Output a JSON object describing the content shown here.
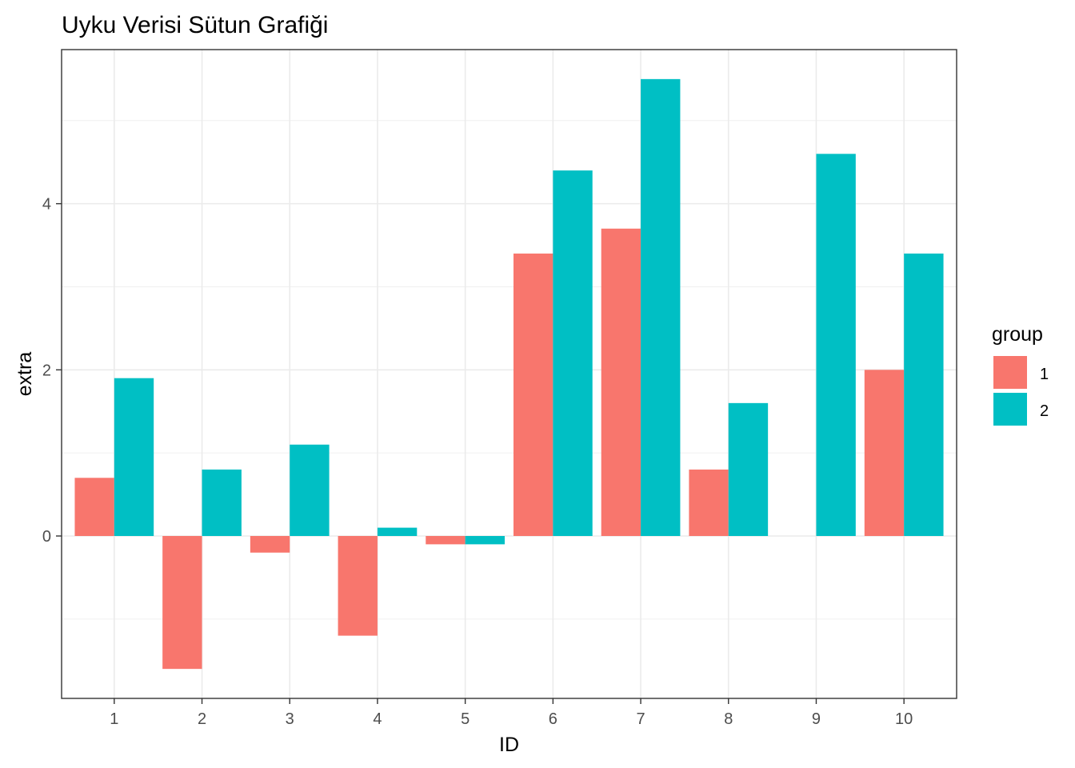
{
  "chart_data": {
    "type": "bar",
    "title": "Uyku Verisi Sütun Grafiği",
    "xlabel": "ID",
    "ylabel": "extra",
    "categories": [
      "1",
      "2",
      "3",
      "4",
      "5",
      "6",
      "7",
      "8",
      "9",
      "10"
    ],
    "series": [
      {
        "name": "1",
        "color": "#F8766D",
        "values": [
          0.7,
          -1.6,
          -0.2,
          -1.2,
          -0.1,
          3.4,
          3.7,
          0.8,
          0.0,
          2.0
        ]
      },
      {
        "name": "2",
        "color": "#00BFC4",
        "values": [
          1.9,
          0.8,
          1.1,
          0.1,
          -0.1,
          4.4,
          5.5,
          1.6,
          4.6,
          3.4
        ]
      }
    ],
    "ylim": [
      -1.955,
      5.855
    ],
    "yticks": [
      0,
      2,
      4
    ],
    "yticks_labels": [
      "0",
      "2",
      "4"
    ],
    "grid": true,
    "legend": {
      "title": "group",
      "placement": "right"
    }
  }
}
